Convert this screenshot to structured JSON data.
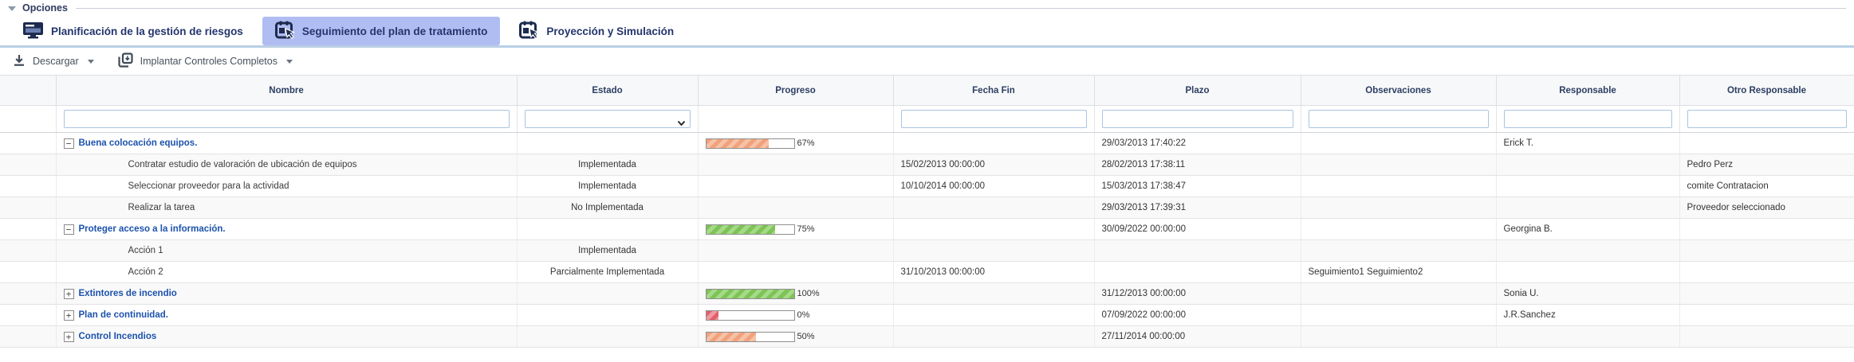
{
  "panel": {
    "title": "Opciones"
  },
  "tabs": [
    {
      "label": "Planificación de la gestión de riesgos",
      "icon": "monitor-icon",
      "active": false
    },
    {
      "label": "Seguimiento del plan de tratamiento",
      "icon": "calendar-cursor-icon",
      "active": true
    },
    {
      "label": "Proyección y Simulación",
      "icon": "calendar-cursor-icon",
      "active": false
    }
  ],
  "toolbar": {
    "download_label": "Descargar",
    "implement_label": "Implantar Controles Completos"
  },
  "colors": {
    "active_tab": "#b0bdf2",
    "parent_link": "#1c52ad",
    "header_text": "#2c3e63",
    "bar_orange": "#f1a17c",
    "bar_green": "#7dc355",
    "bar_red": "#e4606c"
  },
  "table": {
    "columns": [
      "Nombre",
      "Estado",
      "Progreso",
      "Fecha Fin",
      "Plazo",
      "Observaciones",
      "Responsable",
      "Otro Responsable"
    ],
    "rows": [
      {
        "type": "parent",
        "expander": "−",
        "nombre": "Buena colocación equipos.",
        "estado": "",
        "progress": 67,
        "progress_label": "67%",
        "progress_color": "orange",
        "fecha_fin": "",
        "plazo": "29/03/2013 17:40:22",
        "observaciones": "",
        "responsable": "Erick T.",
        "otro_responsable": ""
      },
      {
        "type": "child",
        "expander": "",
        "nombre": "Contratar estudio de valoración de ubicación de equipos",
        "estado": "Implementada",
        "progress": null,
        "progress_label": "",
        "progress_color": "",
        "fecha_fin": "15/02/2013 00:00:00",
        "plazo": "28/02/2013 17:38:11",
        "observaciones": "",
        "responsable": "",
        "otro_responsable": "Pedro Perz"
      },
      {
        "type": "child",
        "expander": "",
        "nombre": "Seleccionar proveedor para la actividad",
        "estado": "Implementada",
        "progress": null,
        "progress_label": "",
        "progress_color": "",
        "fecha_fin": "10/10/2014 00:00:00",
        "plazo": "15/03/2013 17:38:47",
        "observaciones": "",
        "responsable": "",
        "otro_responsable": "comite Contratacion"
      },
      {
        "type": "child",
        "expander": "",
        "nombre": "Realizar la tarea",
        "estado": "No Implementada",
        "progress": null,
        "progress_label": "",
        "progress_color": "",
        "fecha_fin": "",
        "plazo": "29/03/2013 17:39:31",
        "observaciones": "",
        "responsable": "",
        "otro_responsable": "Proveedor seleccionado"
      },
      {
        "type": "parent",
        "expander": "−",
        "nombre": "Proteger acceso a la información.",
        "estado": "",
        "progress": 75,
        "progress_label": "75%",
        "progress_color": "green",
        "fecha_fin": "",
        "plazo": "30/09/2022 00:00:00",
        "observaciones": "",
        "responsable": "Georgina B.",
        "otro_responsable": ""
      },
      {
        "type": "child",
        "expander": "",
        "nombre": "Acción 1",
        "estado": "Implementada",
        "progress": null,
        "progress_label": "",
        "progress_color": "",
        "fecha_fin": "",
        "plazo": "",
        "observaciones": "",
        "responsable": "",
        "otro_responsable": ""
      },
      {
        "type": "child",
        "expander": "",
        "nombre": "Acción 2",
        "estado": "Parcialmente Implementada",
        "progress": null,
        "progress_label": "",
        "progress_color": "",
        "fecha_fin": "31/10/2013 00:00:00",
        "plazo": "",
        "observaciones": "Seguimiento1 Seguimiento2",
        "responsable": "",
        "otro_responsable": ""
      },
      {
        "type": "parent",
        "expander": "+",
        "nombre": "Extintores de incendio",
        "estado": "",
        "progress": 100,
        "progress_label": "100%",
        "progress_color": "green",
        "fecha_fin": "",
        "plazo": "31/12/2013 00:00:00",
        "observaciones": "",
        "responsable": "Sonia U.",
        "otro_responsable": ""
      },
      {
        "type": "parent",
        "expander": "+",
        "nombre": "Plan de continuidad.",
        "estado": "",
        "progress": 0,
        "progress_label": "0%",
        "progress_color": "red",
        "fecha_fin": "",
        "plazo": "07/09/2022 00:00:00",
        "observaciones": "",
        "responsable": "J.R.Sanchez",
        "otro_responsable": ""
      },
      {
        "type": "parent",
        "expander": "+",
        "nombre": "Control Incendios",
        "estado": "",
        "progress": 50,
        "progress_label": "50%",
        "progress_color": "orange",
        "fecha_fin": "",
        "plazo": "27/11/2014 00:00:00",
        "observaciones": "",
        "responsable": "",
        "otro_responsable": ""
      }
    ]
  }
}
